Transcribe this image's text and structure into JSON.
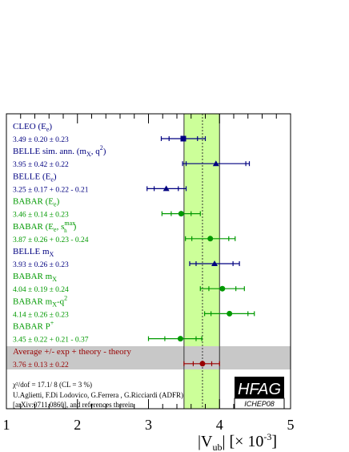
{
  "chart_data": {
    "type": "scatter",
    "xlim": [
      1,
      5
    ],
    "x_ticks": [
      "1",
      "2",
      "3",
      "4",
      "5"
    ],
    "xlabel_main": "|V",
    "xlabel_sub": "ub",
    "xlabel_tail": "|  [× 10",
    "xlabel_exp": "-3",
    "xlabel_close": "]",
    "band": {
      "center": 3.76,
      "low": 3.5,
      "high": 4.0,
      "color": "#ccff99"
    },
    "colors": {
      "blue": "#000080",
      "green": "#009900",
      "red": "#990000",
      "gray": "#c8c8c8"
    },
    "measurements": [
      {
        "name": "CLEO (E",
        "name_sub": "e",
        "name_tail": ")",
        "name_sup": "",
        "value_text": "3.49 ± 0.20 ± 0.23",
        "value": 3.49,
        "stat_low": 3.29,
        "stat_high": 3.69,
        "tot_low": 3.18,
        "tot_high": 3.8,
        "marker": "square",
        "color": "blue"
      },
      {
        "name": "BELLE sim. ann. (m",
        "name_sub": "X",
        "name_tail": ", q",
        "name_sup": "2",
        "name_end": ")",
        "value_text": "3.95 ± 0.42 ± 0.22",
        "value": 3.95,
        "stat_low": 3.53,
        "stat_high": 4.37,
        "tot_low": 3.48,
        "tot_high": 4.42,
        "marker": "triangle",
        "color": "blue"
      },
      {
        "name": "BELLE (E",
        "name_sub": "e",
        "name_tail": ")",
        "name_sup": "",
        "value_text": "3.25 ± 0.17 + 0.22 - 0.21",
        "value": 3.25,
        "stat_low": 3.08,
        "stat_high": 3.42,
        "tot_low": 2.98,
        "tot_high": 3.53,
        "marker": "triangle",
        "color": "blue"
      },
      {
        "name": "BABAR (E",
        "name_sub": "e",
        "name_tail": ")",
        "name_sup": "",
        "value_text": "3.46 ± 0.14 ± 0.23",
        "value": 3.46,
        "stat_low": 3.32,
        "stat_high": 3.6,
        "tot_low": 3.19,
        "tot_high": 3.73,
        "marker": "circle",
        "color": "green"
      },
      {
        "name": "BABAR (E",
        "name_sub": "e",
        "name_tail": ", s",
        "name_sup": "max",
        "name_sup_sub": "h",
        "name_end": ")",
        "value_text": "3.87 ± 0.26 + 0.23 - 0.24",
        "value": 3.87,
        "stat_low": 3.61,
        "stat_high": 4.13,
        "tot_low": 3.52,
        "tot_high": 4.22,
        "marker": "circle",
        "color": "green"
      },
      {
        "name": "BELLE m",
        "name_sub": "X",
        "name_tail": "",
        "name_sup": "",
        "value_text": "3.93 ± 0.26 ± 0.23",
        "value": 3.93,
        "stat_low": 3.67,
        "stat_high": 4.19,
        "tot_low": 3.58,
        "tot_high": 4.28,
        "marker": "triangle",
        "color": "blue"
      },
      {
        "name": "BABAR m",
        "name_sub": "X",
        "name_tail": "",
        "name_sup": "",
        "value_text": "4.04 ± 0.19 ± 0.24",
        "value": 4.04,
        "stat_low": 3.85,
        "stat_high": 4.23,
        "tot_low": 3.73,
        "tot_high": 4.35,
        "marker": "circle",
        "color": "green"
      },
      {
        "name": "BABAR m",
        "name_sub": "X",
        "name_tail": "-q",
        "name_sup": "2",
        "value_text": "4.14 ± 0.26 ± 0.23",
        "value": 4.14,
        "stat_low": 3.88,
        "stat_high": 4.4,
        "tot_low": 3.79,
        "tot_high": 4.49,
        "marker": "circle",
        "color": "green"
      },
      {
        "name": "BABAR P",
        "name_sub": "",
        "name_tail": "",
        "name_sup": "+",
        "value_text": "3.45 ± 0.22 + 0.21 - 0.37",
        "value": 3.45,
        "stat_low": 3.23,
        "stat_high": 3.67,
        "tot_low": 3.0,
        "tot_high": 3.75,
        "marker": "circle",
        "color": "green"
      }
    ],
    "average": {
      "name": "Average +/- exp + theory - theory",
      "value_text": "3.76 ± 0.13 ± 0.22",
      "value": 3.76,
      "stat_low": 3.63,
      "stat_high": 3.89,
      "tot_low": 3.5,
      "tot_high": 4.0,
      "marker": "circle",
      "color": "red"
    },
    "footer": {
      "chi2": "χ²/dof = 17.1/ 8 (CL =  3 %)",
      "authors": "U.Aglietti, F.Di Lodovico, G.Ferrera , G.Ricciardi (ADFR)",
      "refs": "[arXiv:0711.0860], and references therein"
    },
    "logo": {
      "top": "HFAG",
      "bottom": "ICHEP08"
    }
  }
}
